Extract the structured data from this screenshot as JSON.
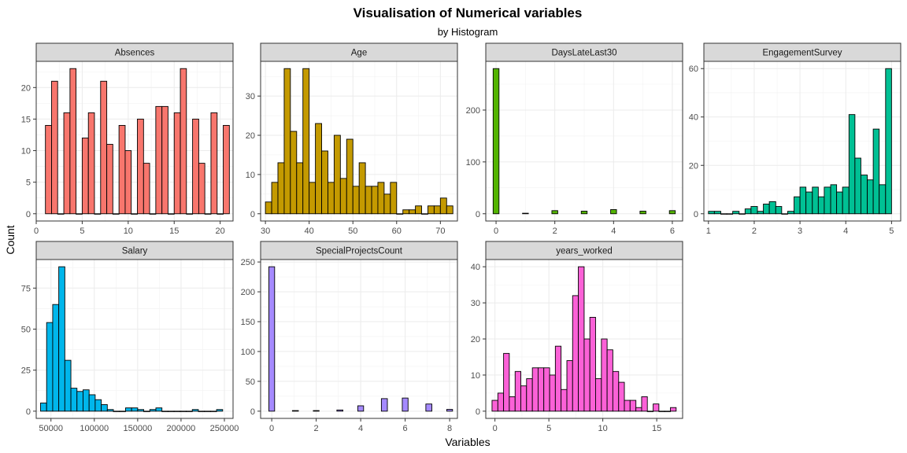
{
  "title": "Visualisation of Numerical variables",
  "subtitle": "by Histogram",
  "xlabel": "Variables",
  "ylabel": "Count",
  "chart_data": [
    {
      "type": "bar",
      "name": "Absences",
      "color": "#F8766D",
      "xlim": [
        0.0,
        21.4
      ],
      "ylim": [
        -1.15,
        24.15
      ],
      "xticks": [
        0,
        5,
        10,
        15,
        20
      ],
      "yticks": [
        0,
        5,
        10,
        15,
        20
      ],
      "bins": [
        [
          1,
          1.67,
          14
        ],
        [
          1.67,
          2.33,
          21
        ],
        [
          2.33,
          3,
          0
        ],
        [
          3,
          3.67,
          16
        ],
        [
          3.67,
          4.33,
          23
        ],
        [
          4.33,
          5,
          0
        ],
        [
          5,
          5.67,
          12
        ],
        [
          5.67,
          6.33,
          16
        ],
        [
          6.33,
          7,
          0
        ],
        [
          7,
          7.67,
          21
        ],
        [
          7.67,
          8.33,
          11
        ],
        [
          8.33,
          9,
          0
        ],
        [
          9,
          9.67,
          14
        ],
        [
          9.67,
          10.33,
          10
        ],
        [
          10.33,
          11,
          0
        ],
        [
          11,
          11.67,
          15
        ],
        [
          11.67,
          12.33,
          8
        ],
        [
          12.33,
          13,
          0
        ],
        [
          13,
          13.67,
          17
        ],
        [
          13.67,
          14.33,
          17
        ],
        [
          14.33,
          15,
          0
        ],
        [
          15,
          15.67,
          16
        ],
        [
          15.67,
          16.33,
          23
        ],
        [
          16.33,
          17,
          0
        ],
        [
          17,
          17.67,
          15
        ],
        [
          17.67,
          18.33,
          8
        ],
        [
          18.33,
          19,
          0
        ],
        [
          19,
          19.67,
          16
        ],
        [
          19.67,
          20.33,
          0
        ],
        [
          20.33,
          21,
          14
        ]
      ]
    },
    {
      "type": "bar",
      "name": "Age",
      "color": "#C49A00",
      "xlim": [
        28.9,
        73.9
      ],
      "ylim": [
        -1.85,
        38.85
      ],
      "xticks": [
        30,
        40,
        50,
        60,
        70
      ],
      "yticks": [
        0,
        10,
        20,
        30
      ],
      "bins": [
        [
          30,
          31.43,
          3
        ],
        [
          31.43,
          32.86,
          8
        ],
        [
          32.86,
          34.29,
          13
        ],
        [
          34.29,
          35.71,
          37
        ],
        [
          35.71,
          37.14,
          21
        ],
        [
          37.14,
          38.57,
          13
        ],
        [
          38.57,
          40,
          37
        ],
        [
          40,
          41.43,
          8
        ],
        [
          41.43,
          42.86,
          23
        ],
        [
          42.86,
          44.29,
          16
        ],
        [
          44.29,
          45.71,
          8
        ],
        [
          45.71,
          47.14,
          20
        ],
        [
          47.14,
          48.57,
          9
        ],
        [
          48.57,
          50,
          19
        ],
        [
          50,
          51.43,
          7
        ],
        [
          51.43,
          52.86,
          13
        ],
        [
          52.86,
          54.29,
          7
        ],
        [
          54.29,
          55.71,
          7
        ],
        [
          55.71,
          57.14,
          8
        ],
        [
          57.14,
          58.57,
          5
        ],
        [
          58.57,
          60,
          8
        ],
        [
          60,
          61.43,
          0
        ],
        [
          61.43,
          62.86,
          1
        ],
        [
          62.86,
          64.29,
          1
        ],
        [
          64.29,
          65.71,
          2
        ],
        [
          65.71,
          67.14,
          0
        ],
        [
          67.14,
          68.57,
          2
        ],
        [
          68.57,
          70,
          2
        ],
        [
          70,
          71.43,
          4
        ],
        [
          71.43,
          72.86,
          2
        ]
      ]
    },
    {
      "type": "bar",
      "name": "DaysLateLast30",
      "color": "#53B400",
      "xlim": [
        -0.35,
        6.35
      ],
      "ylim": [
        -14,
        294
      ],
      "xticks": [
        0,
        2,
        4,
        6
      ],
      "yticks": [
        0,
        100,
        200
      ],
      "bins": [
        [
          -0.1,
          0.1,
          280
        ],
        [
          0.9,
          1.1,
          1
        ],
        [
          1.9,
          2.1,
          6
        ],
        [
          2.9,
          3.1,
          5
        ],
        [
          3.9,
          4.1,
          8
        ],
        [
          4.9,
          5.1,
          5
        ],
        [
          5.9,
          6.1,
          6
        ]
      ]
    },
    {
      "type": "bar",
      "name": "EngagementSurvey",
      "color": "#00C094",
      "xlim": [
        0.9,
        5.2
      ],
      "ylim": [
        -3,
        63
      ],
      "xticks": [
        1,
        2,
        3,
        4,
        5
      ],
      "yticks": [
        0,
        20,
        40,
        60
      ],
      "bins": [
        [
          1,
          1.13,
          1
        ],
        [
          1.13,
          1.27,
          1
        ],
        [
          1.27,
          1.4,
          0
        ],
        [
          1.4,
          1.53,
          0
        ],
        [
          1.53,
          1.67,
          1
        ],
        [
          1.67,
          1.8,
          0
        ],
        [
          1.8,
          1.93,
          2
        ],
        [
          1.93,
          2.07,
          3
        ],
        [
          2.07,
          2.2,
          1
        ],
        [
          2.2,
          2.33,
          4
        ],
        [
          2.33,
          2.47,
          5
        ],
        [
          2.47,
          2.6,
          3
        ],
        [
          2.6,
          2.73,
          0
        ],
        [
          2.73,
          2.87,
          1
        ],
        [
          2.87,
          3,
          7
        ],
        [
          3,
          3.13,
          11
        ],
        [
          3.13,
          3.27,
          9
        ],
        [
          3.27,
          3.4,
          11
        ],
        [
          3.4,
          3.53,
          7
        ],
        [
          3.53,
          3.67,
          11
        ],
        [
          3.67,
          3.8,
          12
        ],
        [
          3.8,
          3.93,
          9
        ],
        [
          3.93,
          4.07,
          11
        ],
        [
          4.07,
          4.2,
          41
        ],
        [
          4.2,
          4.33,
          23
        ],
        [
          4.33,
          4.47,
          16
        ],
        [
          4.47,
          4.6,
          14
        ],
        [
          4.6,
          4.73,
          35
        ],
        [
          4.73,
          4.87,
          12
        ],
        [
          4.87,
          5,
          60
        ]
      ]
    },
    {
      "type": "bar",
      "name": "Salary",
      "color": "#00B6EB",
      "xlim": [
        33000,
        260000
      ],
      "ylim": [
        -4.4,
        92.4
      ],
      "xticks": [
        50000,
        100000,
        150000,
        200000,
        250000
      ],
      "yticks": [
        0,
        25,
        50,
        75
      ],
      "bins": [
        [
          38000,
          45000,
          5
        ],
        [
          45000,
          52000,
          54
        ],
        [
          52000,
          59000,
          65
        ],
        [
          59000,
          66000,
          88
        ],
        [
          66000,
          73000,
          31
        ],
        [
          73000,
          80000,
          14
        ],
        [
          80000,
          87000,
          12
        ],
        [
          87000,
          94000,
          13
        ],
        [
          94000,
          101000,
          10
        ],
        [
          101000,
          108000,
          7
        ],
        [
          108000,
          115000,
          4
        ],
        [
          115000,
          122000,
          1
        ],
        [
          122000,
          129000,
          0
        ],
        [
          129000,
          136000,
          0
        ],
        [
          136000,
          143000,
          2
        ],
        [
          143000,
          150000,
          2
        ],
        [
          150000,
          157000,
          1
        ],
        [
          157000,
          164000,
          0
        ],
        [
          164000,
          171000,
          1
        ],
        [
          171000,
          178000,
          2
        ],
        [
          178000,
          185000,
          0
        ],
        [
          185000,
          192000,
          0
        ],
        [
          192000,
          199000,
          0
        ],
        [
          199000,
          206000,
          0
        ],
        [
          206000,
          213000,
          0
        ],
        [
          213000,
          220000,
          1
        ],
        [
          220000,
          227000,
          0
        ],
        [
          227000,
          234000,
          0
        ],
        [
          234000,
          241000,
          0
        ],
        [
          241000,
          248000,
          1
        ]
      ]
    },
    {
      "type": "bar",
      "name": "SpecialProjectsCount",
      "color": "#A58AFF",
      "xlim": [
        -0.5,
        8.35
      ],
      "ylim": [
        -12.1,
        254.1
      ],
      "xticks": [
        0,
        2,
        4,
        6,
        8
      ],
      "yticks": [
        0,
        50,
        100,
        150,
        200,
        250
      ],
      "bins": [
        [
          -0.13,
          0.13,
          242
        ],
        [
          0.93,
          1.2,
          1
        ],
        [
          1.87,
          2.13,
          1
        ],
        [
          2.93,
          3.2,
          2
        ],
        [
          3.87,
          4.13,
          9
        ],
        [
          4.93,
          5.2,
          21
        ],
        [
          5.87,
          6.13,
          22
        ],
        [
          6.93,
          7.2,
          12
        ],
        [
          7.87,
          8.13,
          3
        ]
      ]
    },
    {
      "type": "bar",
      "name": "years_worked",
      "color": "#FB61D7",
      "xlim": [
        -0.85,
        17.4
      ],
      "ylim": [
        -2,
        42
      ],
      "xticks": [
        0,
        5,
        10,
        15
      ],
      "yticks": [
        0,
        10,
        20,
        30,
        40
      ],
      "bins": [
        [
          -0.27,
          0.27,
          3
        ],
        [
          0.27,
          0.8,
          5
        ],
        [
          0.8,
          1.33,
          16
        ],
        [
          1.33,
          1.87,
          4
        ],
        [
          1.87,
          2.4,
          11
        ],
        [
          2.4,
          2.93,
          7
        ],
        [
          2.93,
          3.47,
          9
        ],
        [
          3.47,
          4,
          12
        ],
        [
          4,
          4.53,
          12
        ],
        [
          4.53,
          5.07,
          12
        ],
        [
          5.07,
          5.6,
          10
        ],
        [
          5.6,
          6.13,
          18
        ],
        [
          6.13,
          6.67,
          6
        ],
        [
          6.67,
          7.2,
          14
        ],
        [
          7.2,
          7.73,
          32
        ],
        [
          7.73,
          8.27,
          40
        ],
        [
          8.27,
          8.8,
          20
        ],
        [
          8.8,
          9.33,
          26
        ],
        [
          9.33,
          9.87,
          9
        ],
        [
          9.87,
          10.4,
          20
        ],
        [
          10.4,
          10.93,
          17
        ],
        [
          10.93,
          11.47,
          11
        ],
        [
          11.47,
          12,
          8
        ],
        [
          12,
          12.53,
          3
        ],
        [
          12.53,
          13.07,
          3
        ],
        [
          13.07,
          13.6,
          1
        ],
        [
          13.6,
          14.13,
          4
        ],
        [
          14.13,
          14.67,
          0
        ],
        [
          14.67,
          15.2,
          2
        ],
        [
          15.2,
          15.73,
          0
        ],
        [
          15.73,
          16.27,
          0
        ],
        [
          16.27,
          16.8,
          1
        ]
      ]
    }
  ]
}
